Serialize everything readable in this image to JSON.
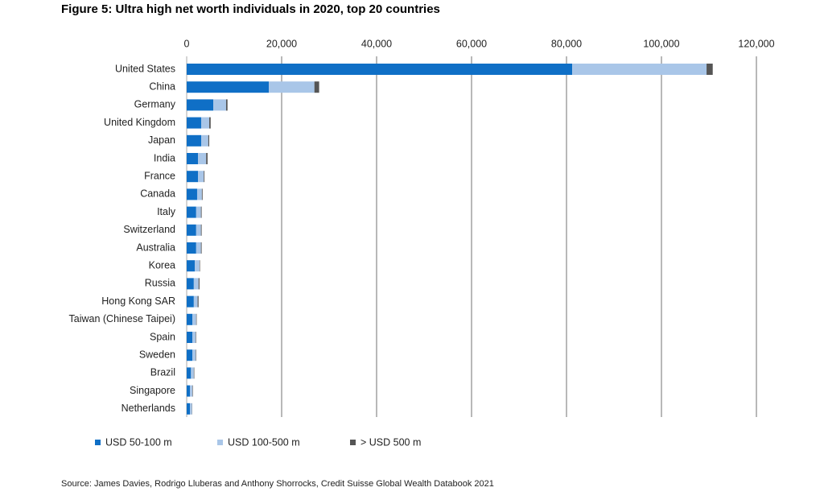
{
  "chart_data": {
    "type": "stacked_bar_horizontal",
    "title": "Figure 5: Ultra high net worth individuals in 2020, top 20 countries",
    "source": "Source: James Davies, Rodrigo Lluberas and Anthony Shorrocks, Credit Suisse Global Wealth Databook 2021",
    "categories": [
      "United States",
      "China",
      "Germany",
      "United Kingdom",
      "Japan",
      "India",
      "France",
      "Canada",
      "Italy",
      "Switzerland",
      "Australia",
      "Korea",
      "Russia",
      "Hong Kong SAR",
      "Taiwan (Chinese Taipei)",
      "Spain",
      "Sweden",
      "Brazil",
      "Singapore",
      "Netherlands"
    ],
    "series": [
      {
        "name": "USD 50-100 m",
        "color": "#0f6fc6",
        "values": [
          81200,
          17300,
          5600,
          3050,
          3050,
          2400,
          2400,
          2200,
          2000,
          2000,
          2000,
          1700,
          1500,
          1500,
          1200,
          1200,
          1200,
          900,
          700,
          700
        ]
      },
      {
        "name": "USD 100-500 m",
        "color": "#a9c6e8",
        "values": [
          28300,
          9600,
          2700,
          1700,
          1500,
          1700,
          1200,
          1000,
          1000,
          1000,
          1000,
          1000,
          1000,
          800,
          800,
          700,
          700,
          600,
          500,
          400
        ]
      },
      {
        "name": "> USD 500 m",
        "color": "#555555",
        "values": [
          1300,
          1000,
          300,
          300,
          200,
          300,
          150,
          150,
          150,
          150,
          150,
          100,
          200,
          200,
          100,
          100,
          100,
          100,
          100,
          50
        ]
      }
    ],
    "xlim": [
      0,
      120000
    ],
    "xticks": [
      0,
      {
        "value": 20000,
        "label": "20,000"
      },
      {
        "value": 40000,
        "label": "40,000"
      },
      {
        "value": 60000,
        "label": "60,000"
      },
      {
        "value": 80000,
        "label": "80,000"
      },
      {
        "value": 100000,
        "label": "100,000"
      },
      {
        "value": 120000,
        "label": "120,000"
      }
    ],
    "grid": true
  }
}
